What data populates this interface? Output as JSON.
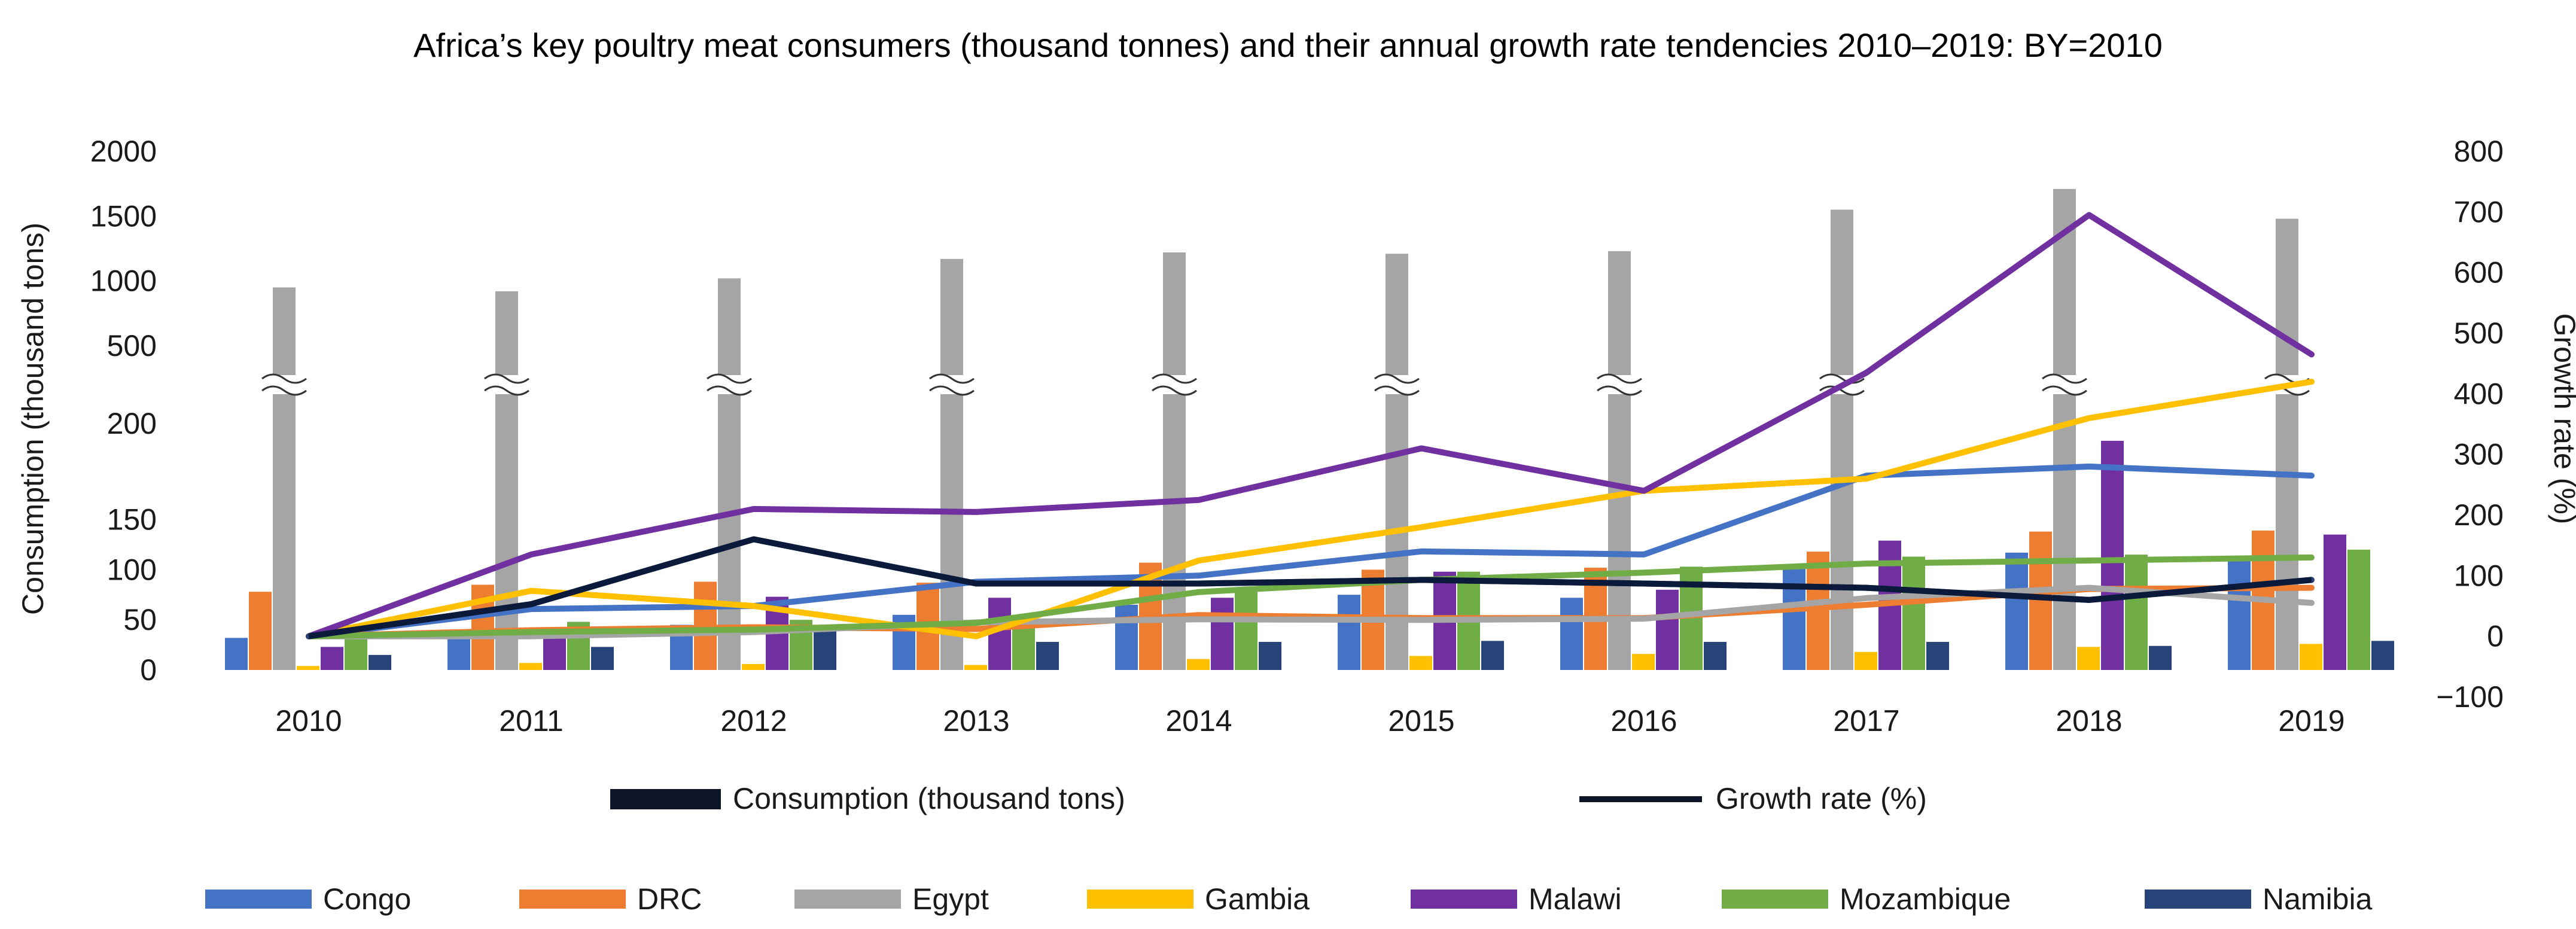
{
  "chart_data": {
    "type": "bar",
    "title": "Africa’s key poultry meat consumers (thousand tonnes) and their annual growth rate tendencies 2010–2019: BY=2010",
    "categories": [
      "2010",
      "2011",
      "2012",
      "2013",
      "2014",
      "2015",
      "2016",
      "2017",
      "2018",
      "2019"
    ],
    "y_left": {
      "label": "Consumption (thousand tons)",
      "tick_labels": [
        "0",
        "50",
        "100",
        "150",
        "200",
        "500",
        "1000",
        "1500",
        "2000"
      ],
      "note": "broken axis: 0–200 linear, then 500–2000"
    },
    "y_right": {
      "label": "Growth rate (%)",
      "ylim": [
        -100,
        800
      ],
      "tick_labels": [
        "−100",
        "0",
        "100",
        "200",
        "300",
        "400",
        "500",
        "600",
        "700",
        "800"
      ]
    },
    "series": [
      {
        "name": "Congo",
        "color": "#4472C4",
        "consumption": [
          32,
          40,
          45,
          55,
          65,
          75,
          72,
          105,
          117,
          112
        ],
        "growth_rate": [
          0,
          45,
          50,
          90,
          100,
          140,
          135,
          265,
          280,
          265
        ]
      },
      {
        "name": "DRC",
        "color": "#ED7D31",
        "consumption": [
          78,
          85,
          88,
          87,
          107,
          100,
          102,
          118,
          138,
          139
        ],
        "growth_rate": [
          0,
          10,
          15,
          12,
          35,
          30,
          30,
          52,
          78,
          80
        ]
      },
      {
        "name": "Egypt",
        "color": "#A5A5A5",
        "consumption": [
          950,
          920,
          1020,
          1170,
          1220,
          1210,
          1230,
          1550,
          1710,
          1480
        ],
        "growth_rate": [
          0,
          0,
          7,
          23,
          28,
          27,
          29,
          63,
          80,
          55
        ]
      },
      {
        "name": "Gambia",
        "color": "#FFC000",
        "consumption": [
          4,
          7,
          6,
          5,
          11,
          14,
          16,
          18,
          23,
          26
        ],
        "growth_rate": [
          0,
          75,
          50,
          0,
          125,
          180,
          240,
          260,
          360,
          420
        ]
      },
      {
        "name": "Malawi",
        "color": "#7030A0",
        "consumption": [
          23,
          42,
          73,
          72,
          72,
          98,
          80,
          129,
          191,
          135
        ],
        "growth_rate": [
          0,
          135,
          210,
          205,
          225,
          310,
          240,
          435,
          695,
          465
        ]
      },
      {
        "name": "Mozambique",
        "color": "#70AD47",
        "consumption": [
          45,
          48,
          50,
          55,
          78,
          98,
          103,
          113,
          115,
          120
        ],
        "growth_rate": [
          0,
          7,
          11,
          22,
          73,
          93,
          105,
          120,
          125,
          130
        ]
      },
      {
        "name": "Namibia",
        "color": "#264478",
        "consumption": [
          15,
          23,
          39,
          28,
          28,
          29,
          28,
          28,
          24,
          29
        ],
        "growth_rate": [
          0,
          53,
          160,
          87,
          87,
          93,
          87,
          80,
          60,
          93
        ]
      }
    ],
    "legend_types": [
      {
        "label": "Consumption (thousand tons)",
        "kind": "bar"
      },
      {
        "label": "Growth rate (%)",
        "kind": "line"
      }
    ],
    "legend_placement": "bottom"
  }
}
